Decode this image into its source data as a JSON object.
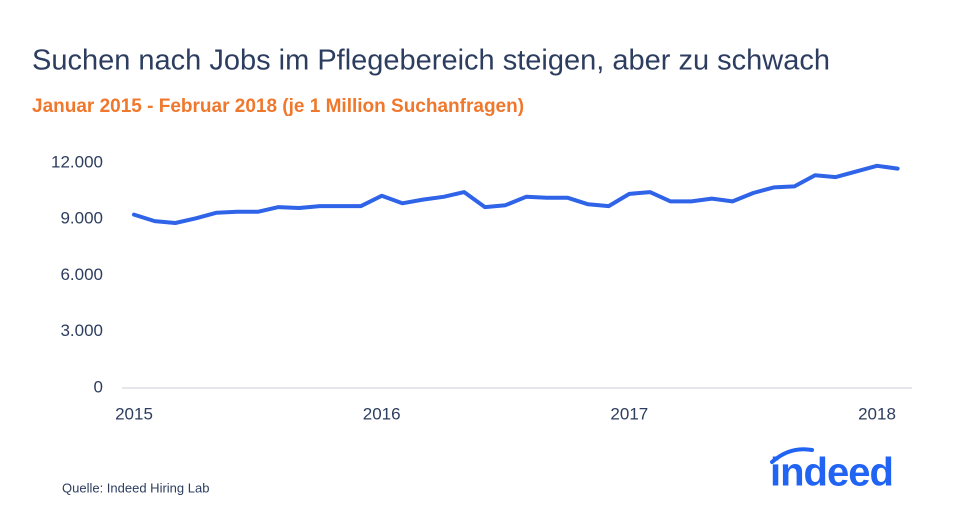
{
  "chart_data": {
    "type": "line",
    "title": "Suchen nach Jobs im Pflegebereich steigen, aber zu schwach",
    "subtitle": "Januar 2015 - Februar 2018 (je 1 Million Suchanfragen)",
    "categories": [
      "2015",
      null,
      null,
      null,
      null,
      null,
      null,
      null,
      null,
      null,
      null,
      null,
      "2016",
      null,
      null,
      null,
      null,
      null,
      null,
      null,
      null,
      null,
      null,
      null,
      "2017",
      null,
      null,
      null,
      null,
      null,
      null,
      null,
      null,
      null,
      null,
      null,
      "2018",
      null
    ],
    "series": [
      {
        "color": "#2f64e8",
        "values": [
          9250,
          8900,
          8800,
          9050,
          9350,
          9400,
          9400,
          9650,
          9600,
          9700,
          9700,
          9700,
          10250,
          9850,
          10050,
          10200,
          10450,
          9650,
          9750,
          10200,
          10150,
          10150,
          9800,
          9700,
          10350,
          10450,
          9950,
          9950,
          10100,
          9950,
          10400,
          10700,
          10750,
          11350,
          11250,
          11550,
          11850,
          11700
        ]
      }
    ],
    "ylim": [
      0,
      12000
    ],
    "yticks": [
      0,
      {
        "value": 3000,
        "label": "3.000"
      },
      {
        "value": 6000,
        "label": "6.000"
      },
      {
        "value": 9000,
        "label": "9.000"
      },
      {
        "value": 12000,
        "label": "12.000"
      }
    ],
    "source": "Quelle: Indeed Hiring Lab",
    "logo": "indeed"
  }
}
